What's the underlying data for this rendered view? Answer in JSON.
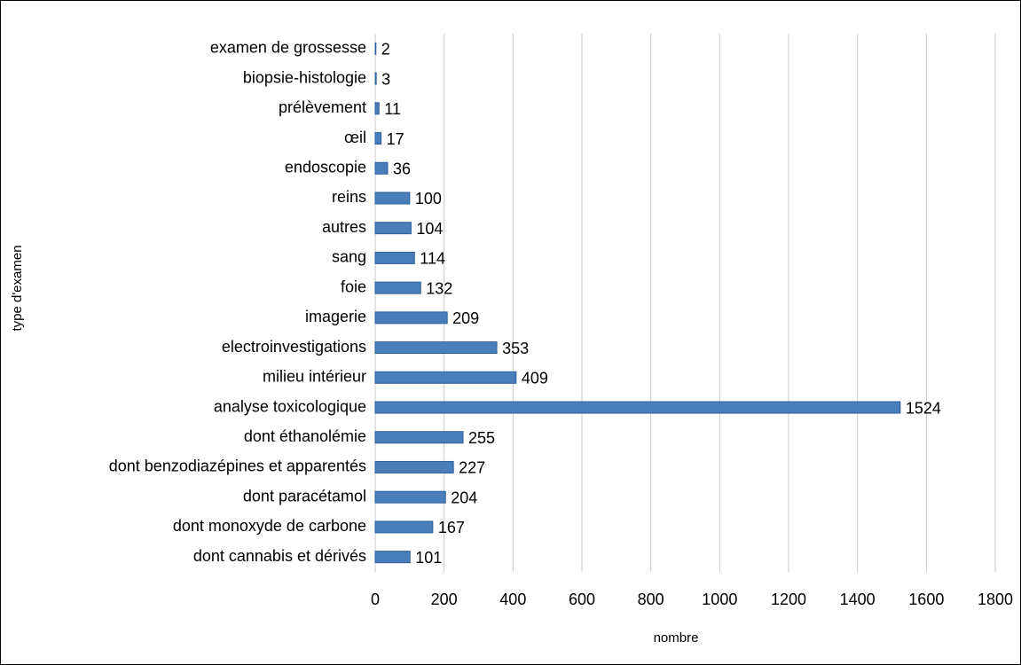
{
  "chart_data": {
    "type": "bar",
    "orientation": "horizontal",
    "x_label": "nombre",
    "y_label": "type d'examen",
    "categories": [
      "examen de grossesse",
      "biopsie-histologie",
      "prélèvement",
      "œil",
      "endoscopie",
      "reins",
      "autres",
      "sang",
      "foie",
      "imagerie",
      "electroinvestigations",
      "milieu intérieur",
      "analyse toxicologique",
      "dont éthanolémie",
      "dont benzodiazépines et apparentés",
      "dont paracétamol",
      "dont monoxyde de carbone",
      "dont cannabis et dérivés"
    ],
    "values": [
      2,
      3,
      11,
      17,
      36,
      100,
      104,
      114,
      132,
      209,
      353,
      409,
      1524,
      255,
      227,
      204,
      167,
      101
    ],
    "color": "#4a7ebb",
    "xlim": [
      0,
      1800
    ],
    "xticks": [
      0,
      200,
      400,
      600,
      800,
      1000,
      1200,
      1400,
      1600,
      1800
    ],
    "grid": true
  }
}
